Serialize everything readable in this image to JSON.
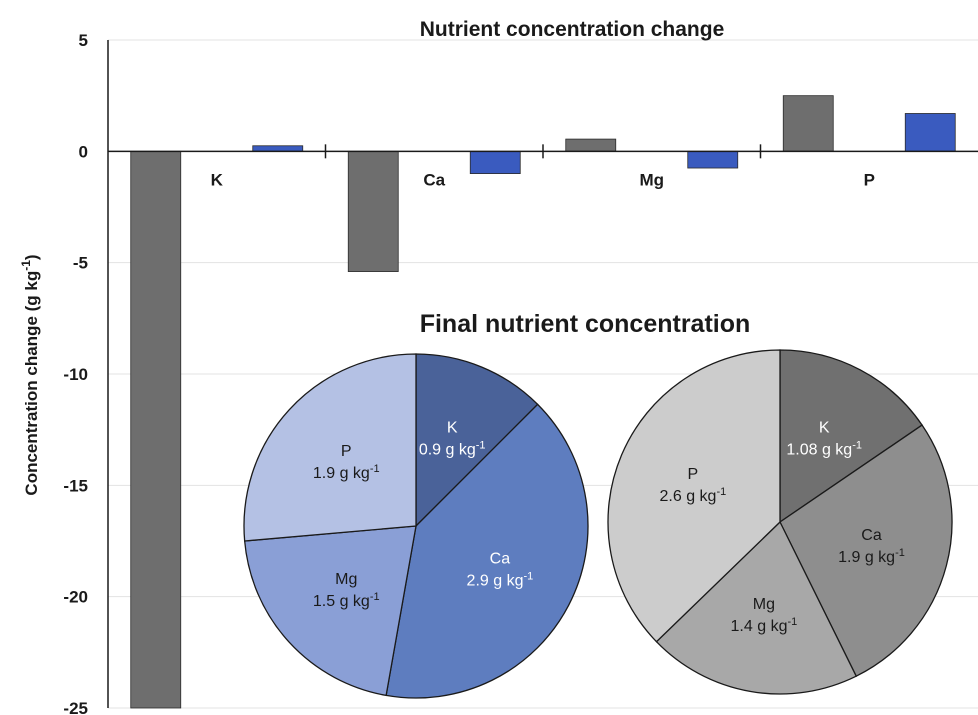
{
  "chart_data": [
    {
      "type": "bar",
      "title": "Nutrient concentration change",
      "xlabel": "",
      "ylabel": "Concentration change (g kg",
      "ylabel_sup": "-1",
      "ylabel_suffix": ")",
      "categories": [
        "K",
        "Ca",
        "Mg",
        "P"
      ],
      "ylim": [
        -25,
        5
      ],
      "yticks": [
        5,
        0,
        -5,
        -10,
        -15,
        -20,
        -25
      ],
      "grid": true,
      "legend": "none",
      "series": [
        {
          "color": "#6e6e6e",
          "values": [
            -25.0,
            -5.4,
            0.55,
            2.5
          ]
        },
        {
          "color": "#3a5bbf",
          "values": [
            0.25,
            -1.0,
            -0.75,
            1.7
          ]
        }
      ]
    },
    {
      "type": "pie",
      "title": "Final nutrient concentration",
      "unit": "g kg",
      "unit_sup": "-1",
      "slices": [
        {
          "label": "K",
          "value": 0.9,
          "text": "0.9",
          "color": "#4a6299",
          "text_color": "#ffffff"
        },
        {
          "label": "Ca",
          "value": 2.9,
          "text": "2.9",
          "color": "#5e7dbf",
          "text_color": "#ffffff"
        },
        {
          "label": "Mg",
          "value": 1.5,
          "text": "1.5",
          "color": "#8a9fd6",
          "text_color": "#1a1a1a"
        },
        {
          "label": "P",
          "value": 1.9,
          "text": "1.9",
          "color": "#b4c1e4",
          "text_color": "#1a1a1a"
        }
      ]
    },
    {
      "type": "pie",
      "title": "",
      "unit": "g kg",
      "unit_sup": "-1",
      "slices": [
        {
          "label": "K",
          "value": 1.08,
          "text": "1.08",
          "color": "#707070",
          "text_color": "#ffffff"
        },
        {
          "label": "Ca",
          "value": 1.9,
          "text": "1.9",
          "color": "#8e8e8e",
          "text_color": "#1a1a1a"
        },
        {
          "label": "Mg",
          "value": 1.4,
          "text": "1.4",
          "color": "#a8a8a8",
          "text_color": "#1a1a1a"
        },
        {
          "label": "P",
          "value": 2.6,
          "text": "2.6",
          "color": "#cccccc",
          "text_color": "#1a1a1a"
        }
      ]
    }
  ]
}
